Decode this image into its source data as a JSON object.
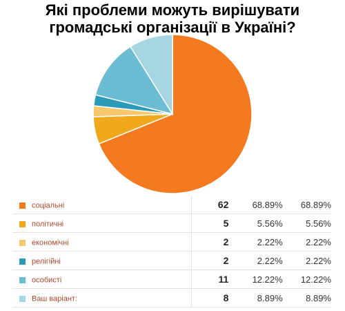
{
  "title_lines": [
    "Які проблеми можуть вирішувати",
    "громадські організації в Україні?"
  ],
  "chart_data": {
    "type": "pie",
    "title": "Які проблеми можуть вирішувати громадські організації в Україні?",
    "slices": [
      {
        "label": "соціальні",
        "count": 62,
        "percent": "68.89%",
        "percent2": "68.89%",
        "color": "#f47a20"
      },
      {
        "label": "політичні",
        "count": 5,
        "percent": "5.56%",
        "percent2": "5.56%",
        "color": "#f0a81c"
      },
      {
        "label": "економічні",
        "count": 2,
        "percent": "2.22%",
        "percent2": "2.22%",
        "color": "#f6c86e"
      },
      {
        "label": "релігійні",
        "count": 2,
        "percent": "2.22%",
        "percent2": "2.22%",
        "color": "#2a9ab8"
      },
      {
        "label": "особисті",
        "count": 11,
        "percent": "12.22%",
        "percent2": "12.22%",
        "color": "#6cbdd3"
      },
      {
        "label": "Ваш варіант:",
        "count": 8,
        "percent": "8.89%",
        "percent2": "8.89%",
        "color": "#a6d6e3"
      }
    ]
  }
}
